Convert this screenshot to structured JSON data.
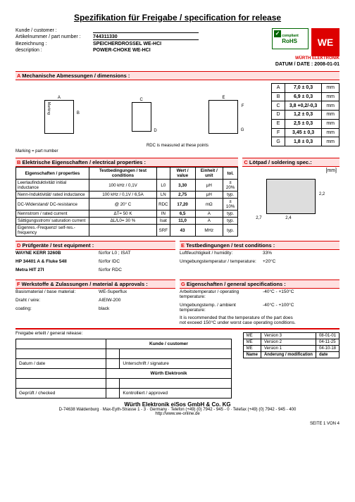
{
  "title": "Spezifikation für Freigabe / specification for release",
  "header": {
    "kunde_label": "Kunde / customer :",
    "artno_label": "Artikelnummer / part number :",
    "artno": "744311330",
    "bez_label": "Bezeichnung :",
    "bez": "SPEICHERDROSSEL WE-HCI",
    "desc_label": "description :",
    "desc": "POWER-CHOKE WE-HCI",
    "rohs": "RoHS",
    "rohs_sub": "compliant",
    "we": "WE",
    "wurth": "WÜRTH ELEKTRONIK",
    "datum_label": "DATUM / DATE :",
    "datum": "2008-01-01"
  },
  "secA": {
    "title_a": "A",
    "title": "  Mechanische Abmessungen / dimensions :",
    "rdc_note": "RDC is  measured at these points",
    "marking_note": "Marking = part number",
    "rows": [
      {
        "k": "A",
        "v": "7,0 ± 0,3",
        "u": "mm"
      },
      {
        "k": "B",
        "v": "6,9 ± 0,3",
        "u": "mm"
      },
      {
        "k": "C",
        "v": "3,8 +0,2/-0,3",
        "u": "mm"
      },
      {
        "k": "D",
        "v": "1,2 ± 0,3",
        "u": "mm"
      },
      {
        "k": "E",
        "v": "2,5 ± 0,3",
        "u": "mm"
      },
      {
        "k": "F",
        "v": "3,45 ± 0,3",
        "u": "mm"
      },
      {
        "k": "G",
        "v": "1,8 ± 0,3",
        "u": "mm"
      }
    ],
    "draw_labels": {
      "A": "A",
      "B": "B",
      "C": "C",
      "D": "D",
      "E": "E",
      "F": "F",
      "G": "G",
      "marking": "Marking"
    }
  },
  "secB": {
    "title_b": "B",
    "title": "  Elektrische Eigenschaften  /  electrical properties :",
    "head": [
      "Eigenschaften / properties",
      "Testbedingungen / test conditions",
      "",
      "Wert / value",
      "Einheit / unit",
      "tol."
    ],
    "rows": [
      [
        "Leerlaufinduktivität/ initial inductance",
        "100 kHz / 0,1V",
        "L0",
        "3,30",
        "µH",
        "± 20%"
      ],
      [
        "Nenn-Induktivität/ rated inductance",
        "100 kHz / 0,1V / 6,5A",
        "LN",
        "2,75",
        "µH",
        "typ."
      ],
      [
        "DC-Widerstand/ DC-resistance",
        "@ 20° C",
        "RDC",
        "17,20",
        "mΩ",
        "± 10%"
      ],
      [
        "Nennstrom / rated current",
        "ΔT= 50 K",
        "IN",
        "6,5",
        "A",
        "typ."
      ],
      [
        "Sättigungsstrom/ saturation current",
        "ΔL/L0= 30 %",
        "Isat",
        "11,0",
        "A",
        "typ."
      ],
      [
        "Eigenres.-Frequenz/ self-res.-frequency",
        "",
        "SRF",
        "43",
        "MHz",
        "typ."
      ]
    ]
  },
  "secC": {
    "title_c": "C",
    "title": "  Lötpad /  soldering spec.:",
    "unit": "[mm]",
    "dims": {
      "w": "2,4",
      "h": "2,2",
      "gap": "2,7"
    }
  },
  "secD": {
    "title_d": "D",
    "title": "  Prüfgeräte  / test equipment :",
    "rows": [
      {
        "k": "WAYNE KERR 3260B",
        "v": "für/for L0 ; ISAT"
      },
      {
        "k": "HP 34401 A & Fluke 54II",
        "v": "für/for IDC"
      },
      {
        "k": "Metra HIT 27I",
        "v": "für/for RDC"
      }
    ]
  },
  "secE": {
    "title_e": "E",
    "title": "  Testbedingungen / test conditions :",
    "rows": [
      {
        "k": "Luftfeuchtigkeit / humidity:",
        "v": "33%"
      },
      {
        "k": "Umgebungstemperatur / temperature:",
        "v": "+20°C"
      }
    ]
  },
  "secF": {
    "title_f": "F",
    "title": "  Werkstoffe & Zulassungen / material & approvals :",
    "rows": [
      {
        "k": "Basismaterial / base material:",
        "v": "WE-Superflux"
      },
      {
        "k": "Draht / wire:",
        "v": "AIEIW-200"
      },
      {
        "k": "coating:",
        "v": "black"
      }
    ]
  },
  "secG": {
    "title_g": "G",
    "title": "  Eigenschaften / general specifications :",
    "rows": [
      {
        "k": "Arbeitstemperatur / operating temperature:",
        "v": "-40°C - +150°C"
      },
      {
        "k": "Umgebungstemp. / ambient temperature:",
        "v": "-40°C - +100°C"
      }
    ],
    "note1": "It is recommended that the temperature of the part does",
    "note2": "not exceed 150°C under worst case operating conditions."
  },
  "sig": {
    "release": "Freigabe erteilt / general release:",
    "kunde": "Kunde / customer",
    "datum": "Datum / date",
    "unterschrift": "Unterschrift / signature",
    "wurth": "Würth Elektronik",
    "gepruft": "Geprüft / checked",
    "kontrolliert": "Kontrolliert / approved"
  },
  "versions": {
    "head": [
      "",
      "",
      ""
    ],
    "rows": [
      [
        "ME",
        "Version 3",
        "08-01-01"
      ],
      [
        "ME",
        "Version 2",
        "04-11-25"
      ],
      [
        "ME",
        "Version 1",
        "04-10-18"
      ],
      [
        "Name",
        "Änderung / modification",
        "date"
      ]
    ]
  },
  "footer": {
    "company": "Würth Elektronik eiSos GmbH & Co. KG",
    "addr": "D-74638 Waldenburg  ·  Max-Eyth-Strasse 1 - 3  ·  Germany  ·  Telefon (+49) (0) 7942 - 945 - 0  ·  Telefax (+49) (0) 7942 - 945 - 400",
    "url": "http://www.we-online.de",
    "page": "SEITE 1 VON 4"
  },
  "colors": {
    "accent": "#d00",
    "section_bg": "#ffe0e0"
  }
}
